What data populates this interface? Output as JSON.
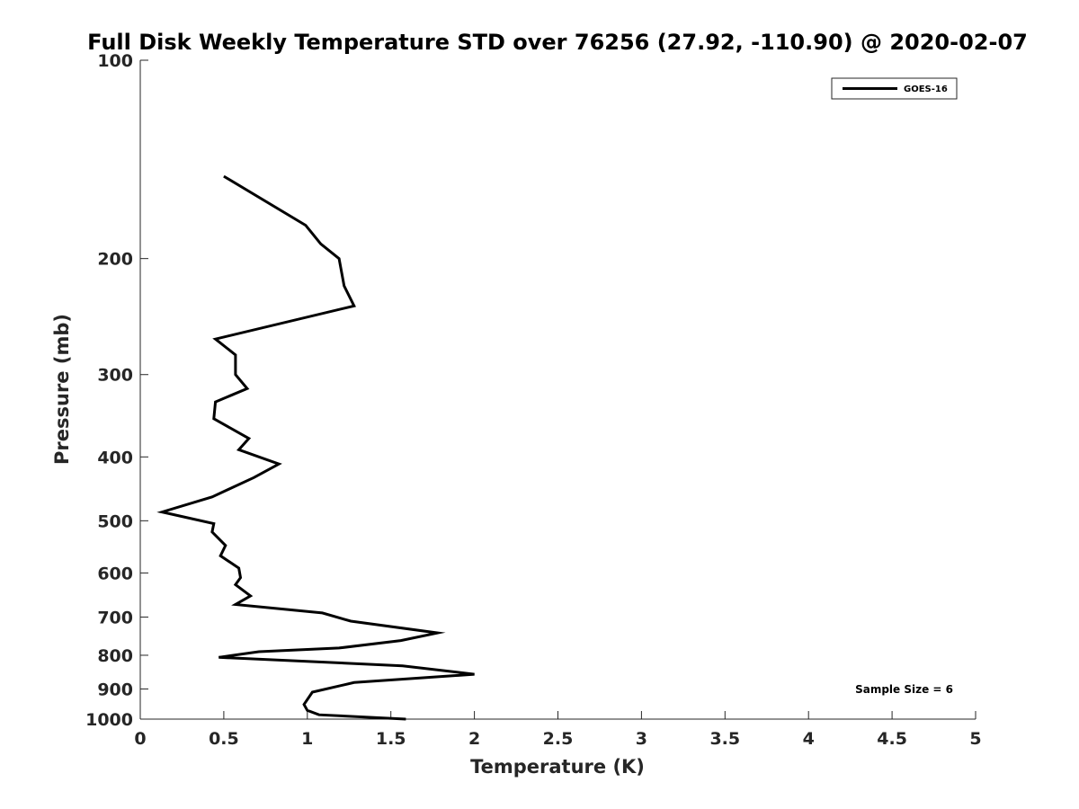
{
  "chart_data": {
    "type": "line",
    "title": "Full Disk Weekly Temperature STD over 76256 (27.92, -110.90) @ 2020-02-07",
    "xlabel": "Temperature (K)",
    "ylabel": "Pressure (mb)",
    "xlim": [
      0,
      5
    ],
    "ylim": [
      100,
      1000
    ],
    "y_scale": "log",
    "y_reversed": true,
    "x_ticks": [
      "0",
      "0.5",
      "1",
      "1.5",
      "2",
      "2.5",
      "3",
      "3.5",
      "4",
      "4.5",
      "5"
    ],
    "y_ticks": [
      "100",
      "200",
      "300",
      "400",
      "500",
      "600",
      "700",
      "800",
      "900",
      "1000"
    ],
    "grid": false,
    "legend_position": "top-right",
    "annotation": "Sample Size = 6",
    "series": [
      {
        "name": "GOES-16",
        "color": "#000000",
        "x": [
          0.5,
          0.99,
          1.08,
          1.19,
          1.22,
          1.28,
          0.45,
          0.57,
          0.57,
          0.64,
          0.45,
          0.44,
          0.65,
          0.59,
          0.83,
          0.68,
          0.43,
          0.13,
          0.44,
          0.43,
          0.51,
          0.48,
          0.59,
          0.6,
          0.57,
          0.66,
          0.57,
          1.09,
          1.26,
          1.78,
          1.56,
          1.19,
          0.71,
          0.47,
          1.57,
          2.0,
          1.28,
          1.03,
          0.98,
          1.0,
          1.07,
          1.59
        ],
        "y": [
          150,
          178,
          190,
          200,
          220,
          236,
          265,
          280,
          300,
          315,
          330,
          350,
          375,
          390,
          410,
          430,
          460,
          485,
          505,
          520,
          545,
          565,
          590,
          610,
          625,
          650,
          670,
          690,
          710,
          740,
          760,
          780,
          790,
          806,
          830,
          855,
          880,
          910,
          950,
          970,
          985,
          1000
        ]
      }
    ]
  }
}
